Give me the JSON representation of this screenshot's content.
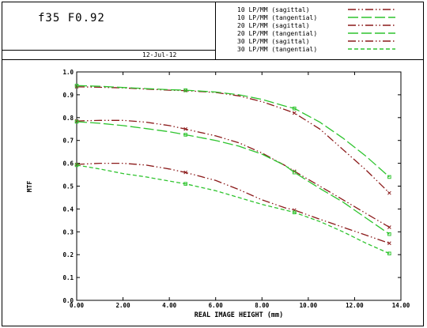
{
  "header": {
    "lens_title": "f35 F0.92",
    "date": "12-Jul-12"
  },
  "colors": {
    "sagittal": "#8b1a1a",
    "tangential": "#2ec42e",
    "frame": "#000000"
  },
  "chart_data": {
    "type": "line",
    "title": "",
    "xlabel": "REAL IMAGE HEIGHT (mm)",
    "ylabel": "MTF",
    "xlim": [
      0,
      14
    ],
    "ylim": [
      0,
      1
    ],
    "x_ticks": [
      "0.00",
      "2.00",
      "4.00",
      "6.00",
      "8.00",
      "10.00",
      "12.00",
      "14.00"
    ],
    "y_ticks": [
      "0.0",
      "0.1",
      "0.2",
      "0.3",
      "0.4",
      "0.5",
      "0.6",
      "0.7",
      "0.8",
      "0.9",
      "1.0"
    ],
    "legend_position": "top-right",
    "series": [
      {
        "name": "10 LP/MM (sagittal)",
        "color": "#8b1a1a",
        "dash": "dot-dash",
        "x": [
          0,
          1.0,
          2.0,
          3.0,
          4.0,
          4.7,
          6.0,
          7.0,
          8.0,
          9.0,
          9.4,
          10.5,
          11.5,
          12.5,
          13.5
        ],
        "y": [
          0.935,
          0.933,
          0.93,
          0.925,
          0.92,
          0.918,
          0.91,
          0.895,
          0.87,
          0.835,
          0.82,
          0.75,
          0.66,
          0.57,
          0.47
        ]
      },
      {
        "name": "10 LP/MM (tangential)",
        "color": "#2ec42e",
        "dash": "long-dash",
        "x": [
          0,
          1.0,
          2.0,
          3.0,
          4.0,
          4.7,
          6.0,
          7.0,
          8.0,
          9.0,
          9.4,
          10.5,
          11.5,
          12.5,
          13.5
        ],
        "y": [
          0.94,
          0.937,
          0.932,
          0.927,
          0.922,
          0.92,
          0.912,
          0.9,
          0.88,
          0.85,
          0.84,
          0.78,
          0.71,
          0.63,
          0.54
        ]
      },
      {
        "name": "20 LP/MM (sagittal)",
        "color": "#8b1a1a",
        "dash": "dot-dash",
        "x": [
          0,
          1.0,
          2.0,
          3.0,
          4.0,
          4.7,
          6.0,
          7.0,
          8.0,
          9.0,
          9.4,
          10.5,
          11.5,
          12.5,
          13.5
        ],
        "y": [
          0.785,
          0.788,
          0.788,
          0.78,
          0.765,
          0.75,
          0.72,
          0.69,
          0.645,
          0.59,
          0.565,
          0.5,
          0.44,
          0.38,
          0.32
        ]
      },
      {
        "name": "20 LP/MM (tangential)",
        "color": "#2ec42e",
        "dash": "long-dash",
        "x": [
          0,
          1.0,
          2.0,
          3.0,
          4.0,
          4.7,
          6.0,
          7.0,
          8.0,
          9.0,
          9.4,
          10.5,
          11.5,
          12.5,
          13.5
        ],
        "y": [
          0.782,
          0.775,
          0.765,
          0.752,
          0.738,
          0.725,
          0.7,
          0.675,
          0.64,
          0.59,
          0.56,
          0.49,
          0.43,
          0.36,
          0.29
        ]
      },
      {
        "name": "30 LP/MM (sagittal)",
        "color": "#8b1a1a",
        "dash": "dot-dash",
        "x": [
          0,
          1.0,
          2.0,
          3.0,
          4.0,
          4.7,
          6.0,
          7.0,
          8.0,
          9.0,
          9.4,
          10.5,
          11.5,
          12.5,
          13.5
        ],
        "y": [
          0.595,
          0.6,
          0.6,
          0.592,
          0.575,
          0.56,
          0.525,
          0.485,
          0.44,
          0.405,
          0.395,
          0.355,
          0.32,
          0.285,
          0.25
        ]
      },
      {
        "name": "30 LP/MM (tangential)",
        "color": "#2ec42e",
        "dash": "short-dash",
        "x": [
          0,
          1.0,
          2.0,
          3.0,
          4.0,
          4.7,
          6.0,
          7.0,
          8.0,
          9.0,
          9.4,
          10.5,
          11.5,
          12.5,
          13.5
        ],
        "y": [
          0.592,
          0.575,
          0.555,
          0.54,
          0.522,
          0.51,
          0.48,
          0.45,
          0.42,
          0.395,
          0.385,
          0.345,
          0.3,
          0.25,
          0.205
        ]
      }
    ]
  }
}
